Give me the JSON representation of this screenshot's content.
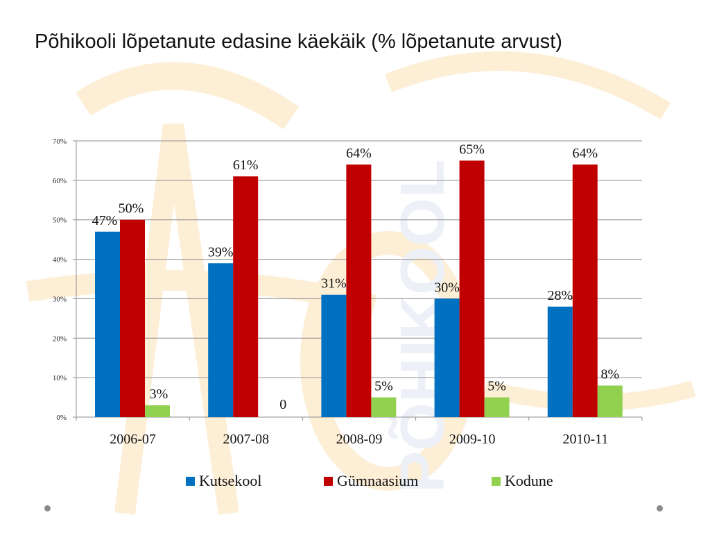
{
  "slide": {
    "title": "Põhikooli lõpetanute edasine käekäik (% lõpetanute arvust)"
  },
  "colors": {
    "Kutsekool": "#0070c0",
    "Gümnaasium": "#c00000",
    "Kodune": "#92d050",
    "grid": "#8c8c8c",
    "watermark": "#f5a623"
  },
  "background_watermark": {
    "text": "PÕHIKOOL"
  },
  "chart_data": {
    "type": "bar",
    "title": "",
    "xlabel": "",
    "ylabel": "",
    "categories": [
      "2006-07",
      "2007-08",
      "2008-09",
      "2009-10",
      "2010-11"
    ],
    "ylim": [
      0,
      70
    ],
    "yticks": [
      0,
      10,
      20,
      30,
      40,
      50,
      60,
      70
    ],
    "ytick_labels": [
      "0%",
      "10%",
      "20%",
      "30%",
      "40%",
      "50%",
      "60%",
      "70%"
    ],
    "grid": true,
    "legend_position": "bottom",
    "series": [
      {
        "name": "Kutsekool",
        "values": [
          47,
          39,
          31,
          30,
          28
        ],
        "labels": [
          "47%",
          "39%",
          "31%",
          "30%",
          "28%"
        ]
      },
      {
        "name": "Gümnaasium",
        "values": [
          50,
          61,
          64,
          65,
          64
        ],
        "labels": [
          "50%",
          "61%",
          "64%",
          "65%",
          "64%"
        ]
      },
      {
        "name": "Kodune",
        "values": [
          3,
          0,
          5,
          5,
          8
        ],
        "labels": [
          "3%",
          "0",
          "5%",
          "5%",
          "8%"
        ]
      }
    ]
  }
}
